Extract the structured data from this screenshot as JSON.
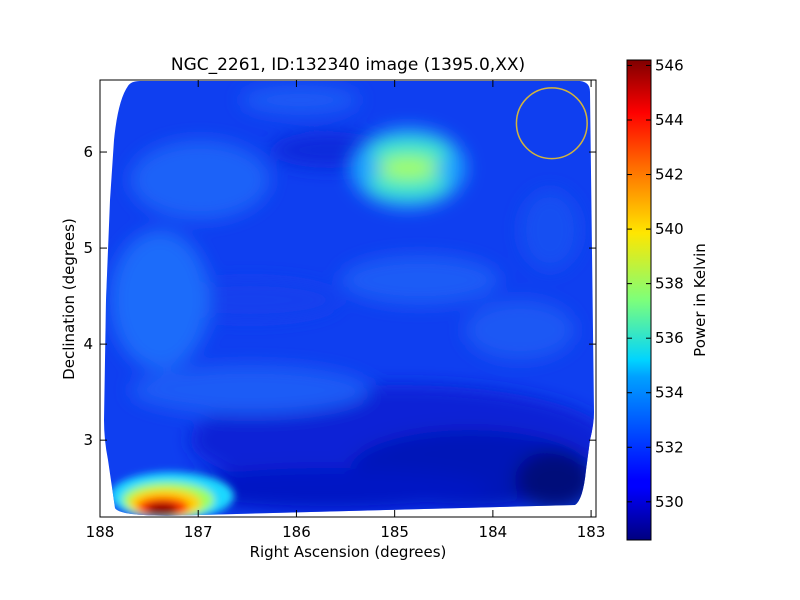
{
  "chart_data": {
    "type": "heatmap",
    "title": "NGC_2261, ID:132340 image (1395.0,XX)",
    "xlabel": "Right Ascension (degrees)",
    "ylabel": "Declination (degrees)",
    "xlim": [
      188.0,
      182.95
    ],
    "ylim": [
      2.2,
      6.75
    ],
    "x_ticks": [
      188,
      187,
      186,
      185,
      184,
      183
    ],
    "y_ticks": [
      3,
      4,
      5,
      6
    ],
    "colorbar": {
      "label": "Power in Kelvin",
      "range": [
        528.6,
        546.2
      ],
      "ticks": [
        530,
        532,
        534,
        536,
        538,
        540,
        542,
        544,
        546
      ],
      "colormap": "jet"
    },
    "background_level": 532,
    "features": [
      {
        "name": "hot source",
        "ra": 187.35,
        "dec": 2.32,
        "value": 546
      },
      {
        "name": "warm blob",
        "ra": 184.85,
        "dec": 5.8,
        "value": 538.5
      },
      {
        "name": "cool region",
        "ra": 184.5,
        "dec": 2.6,
        "value": 529.5
      }
    ],
    "beam_circle": {
      "ra": 183.4,
      "dec": 6.3,
      "radius_deg": 0.36,
      "color": "#d4b43c"
    },
    "grid": false
  }
}
